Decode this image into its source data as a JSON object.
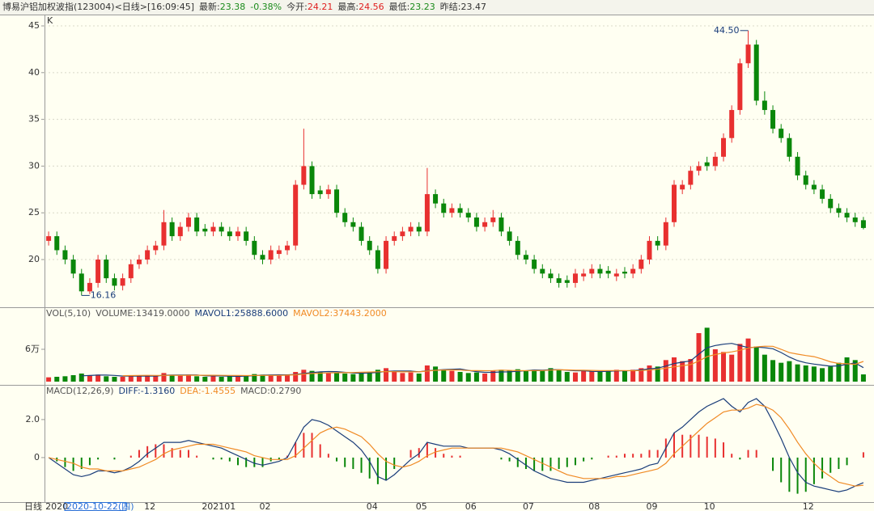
{
  "header": {
    "title": "博易沪铝加权波指(123004)<日线>[16:09:45]",
    "items": [
      {
        "label": "最新:",
        "value": 23.38,
        "color": "#1a8a1a"
      },
      {
        "label": "-0.38%",
        "color": "#1a8a1a"
      },
      {
        "label": "今开:",
        "value": 24.21,
        "color": "#e02020"
      },
      {
        "label": "最高:",
        "value": 24.56,
        "color": "#e02020"
      },
      {
        "label": "最低:",
        "value": 23.23,
        "color": "#1a8a1a"
      },
      {
        "label": "昨结:",
        "value": 23.47,
        "color": "#333333"
      }
    ]
  },
  "chart_data": {
    "type": "candlestick",
    "period_label": "日线",
    "cursor_date": "2020-10-22(四)",
    "categories": [
      "2020",
      null,
      null,
      null,
      null,
      null,
      null,
      null,
      null,
      null,
      null,
      null,
      "12",
      null,
      null,
      null,
      null,
      null,
      null,
      "202101",
      null,
      null,
      null,
      null,
      null,
      null,
      "02",
      null,
      null,
      null,
      null,
      null,
      null,
      null,
      null,
      null,
      null,
      null,
      null,
      "04",
      null,
      null,
      null,
      null,
      null,
      "05",
      null,
      null,
      null,
      null,
      null,
      "06",
      null,
      null,
      null,
      null,
      null,
      null,
      "07",
      null,
      null,
      null,
      null,
      null,
      null,
      null,
      "08",
      null,
      null,
      null,
      null,
      null,
      null,
      "09",
      null,
      null,
      null,
      null,
      null,
      null,
      "10",
      null,
      null,
      null,
      null,
      null,
      null,
      null,
      null,
      null,
      null,
      null,
      "12",
      null,
      null,
      null,
      null,
      null,
      null,
      null
    ],
    "up_color": "#e83030",
    "down_color": "#0a870a",
    "price": {
      "label": "K",
      "ylim": [
        15.07,
        46.04
      ],
      "yticks": [
        20,
        25,
        30,
        35,
        40,
        45
      ],
      "grid": true,
      "high_label": {
        "value": 44.5,
        "label": "44.50"
      },
      "low_label": {
        "value": 16.16,
        "label": "16.16"
      },
      "open": [
        22.0,
        22.5,
        21.0,
        20.0,
        18.5,
        16.6,
        17.5,
        20.0,
        18.0,
        17.2,
        18.0,
        19.5,
        20.0,
        21.0,
        21.5,
        24.0,
        22.5,
        23.5,
        24.5,
        23.3,
        23.0,
        23.5,
        23.0,
        22.5,
        23.0,
        22.0,
        20.5,
        20.0,
        20.6,
        21.0,
        21.5,
        28.0,
        30.0,
        27.4,
        27.0,
        27.5,
        25.0,
        24.0,
        23.5,
        22.0,
        21.0,
        19.0,
        22.0,
        22.5,
        23.0,
        23.5,
        23.0,
        27.0,
        26.0,
        25.0,
        25.5,
        25.0,
        24.5,
        23.5,
        24.0,
        24.5,
        23.0,
        22.0,
        20.5,
        20.0,
        19.0,
        18.5,
        18.0,
        17.8,
        17.5,
        18.2,
        18.5,
        19.0,
        18.8,
        18.2,
        18.7,
        18.5,
        19.0,
        20.0,
        22.0,
        21.5,
        24.0,
        27.5,
        28.0,
        29.5,
        30.4,
        30.0,
        31.0,
        33.0,
        36.0,
        41.0,
        43.0,
        37.0,
        36.0,
        34.0,
        33.0,
        31.0,
        29.0,
        28.0,
        27.5,
        26.5,
        25.5,
        25.0,
        24.5,
        24.21
      ],
      "high": [
        23.0,
        23.0,
        21.5,
        20.5,
        19.0,
        18.0,
        20.5,
        20.5,
        18.5,
        18.5,
        20.0,
        20.5,
        21.5,
        22.0,
        25.3,
        24.5,
        24.0,
        25.0,
        25.0,
        23.8,
        24.0,
        24.0,
        23.5,
        23.5,
        23.5,
        22.5,
        21.0,
        21.5,
        21.5,
        22.0,
        28.5,
        34.0,
        30.5,
        27.9,
        28.0,
        28.0,
        25.5,
        24.5,
        24.0,
        22.5,
        21.5,
        22.5,
        23.0,
        23.5,
        24.0,
        24.0,
        29.8,
        27.5,
        26.5,
        26.0,
        26.0,
        25.5,
        25.0,
        24.5,
        25.3,
        25.0,
        23.5,
        22.5,
        21.0,
        20.5,
        19.5,
        19.0,
        18.5,
        18.3,
        19.0,
        19.0,
        19.5,
        19.5,
        19.3,
        19.0,
        19.2,
        19.5,
        20.5,
        22.5,
        22.5,
        24.5,
        28.5,
        28.5,
        30.0,
        30.5,
        31.0,
        31.5,
        33.5,
        36.5,
        41.5,
        44.5,
        43.5,
        38.0,
        36.5,
        34.5,
        33.5,
        31.5,
        29.5,
        28.5,
        28.0,
        27.0,
        26.0,
        25.5,
        25.0,
        24.56
      ],
      "low": [
        21.5,
        20.5,
        19.5,
        18.0,
        16.16,
        16.3,
        17.0,
        17.5,
        16.7,
        16.7,
        17.5,
        19.0,
        19.5,
        20.5,
        21.0,
        22.0,
        22.0,
        23.0,
        22.5,
        22.5,
        22.5,
        22.5,
        22.0,
        22.0,
        21.5,
        20.0,
        19.5,
        19.5,
        20.1,
        20.5,
        21.0,
        27.5,
        26.5,
        26.5,
        26.5,
        24.5,
        23.5,
        23.0,
        21.5,
        20.5,
        18.5,
        18.5,
        21.5,
        22.0,
        22.5,
        22.5,
        22.5,
        25.5,
        24.5,
        24.5,
        24.5,
        24.0,
        23.0,
        23.0,
        23.5,
        22.5,
        21.5,
        20.0,
        19.5,
        18.5,
        18.0,
        17.5,
        17.0,
        17.0,
        17.0,
        17.7,
        18.0,
        18.0,
        18.0,
        17.7,
        18.0,
        18.0,
        18.5,
        19.5,
        21.0,
        21.0,
        23.5,
        27.0,
        27.5,
        29.0,
        29.5,
        29.5,
        30.5,
        32.5,
        35.5,
        40.5,
        36.5,
        35.5,
        33.5,
        32.5,
        30.5,
        28.5,
        27.5,
        27.0,
        26.0,
        25.0,
        24.5,
        24.0,
        23.5,
        23.23
      ],
      "close": [
        22.5,
        21.0,
        20.0,
        18.5,
        16.6,
        17.5,
        20.0,
        18.0,
        17.2,
        18.0,
        19.5,
        20.0,
        21.0,
        21.5,
        24.0,
        22.5,
        23.5,
        24.5,
        23.0,
        23.0,
        23.5,
        23.0,
        22.5,
        23.0,
        22.0,
        20.5,
        20.0,
        21.0,
        21.0,
        21.5,
        28.0,
        30.0,
        27.0,
        27.0,
        27.5,
        25.0,
        24.0,
        23.5,
        22.0,
        21.0,
        19.0,
        22.0,
        22.5,
        23.0,
        23.5,
        23.0,
        27.0,
        26.0,
        25.0,
        25.5,
        25.0,
        24.5,
        23.5,
        24.0,
        24.5,
        23.0,
        22.0,
        20.5,
        20.0,
        19.0,
        18.5,
        18.0,
        17.5,
        17.5,
        18.5,
        18.5,
        19.0,
        18.5,
        18.5,
        18.5,
        18.5,
        19.0,
        20.0,
        22.0,
        21.5,
        24.0,
        28.0,
        28.0,
        29.5,
        30.0,
        30.0,
        31.0,
        33.0,
        36.0,
        41.0,
        43.0,
        37.0,
        36.0,
        34.0,
        33.0,
        31.0,
        29.0,
        28.0,
        27.5,
        26.5,
        25.5,
        25.0,
        24.5,
        24.0,
        23.38
      ]
    },
    "volume": {
      "ylim": [
        0,
        135000
      ],
      "yticks": [
        {
          "value": 60000,
          "label": "6万"
        }
      ],
      "legend": [
        {
          "text": "VOL(5,10)",
          "color": "#555555"
        },
        {
          "text": "VOLUME:13419.0000",
          "color": "#555555"
        },
        {
          "text": "MAVOL1:25888.6000",
          "color": "#1a3d7a"
        },
        {
          "text": "MAVOL2:37443.2000",
          "color": "#f08a24"
        }
      ],
      "values": [
        8000,
        9000,
        10000,
        12000,
        15000,
        11000,
        13000,
        10000,
        9000,
        9000,
        10000,
        11000,
        12000,
        10000,
        16000,
        12000,
        11000,
        13000,
        10000,
        9000,
        10000,
        9000,
        10000,
        11000,
        12000,
        14000,
        13000,
        12000,
        11000,
        13000,
        18000,
        22000,
        20000,
        18000,
        16000,
        17000,
        15000,
        14000,
        16000,
        18000,
        22000,
        25000,
        18000,
        16000,
        17000,
        15000,
        30000,
        28000,
        22000,
        20000,
        18000,
        16000,
        17000,
        15000,
        20000,
        22000,
        21000,
        23000,
        20000,
        22000,
        20000,
        25000,
        21000,
        18000,
        17000,
        20000,
        19000,
        18000,
        21000,
        22000,
        20000,
        22000,
        25000,
        30000,
        28000,
        40000,
        45000,
        38000,
        42000,
        90000,
        100000,
        60000,
        55000,
        50000,
        70000,
        80000,
        65000,
        50000,
        40000,
        35000,
        38000,
        32000,
        30000,
        28000,
        25000,
        28000,
        35000,
        45000,
        40000,
        13419
      ],
      "series": [
        {
          "name": "MAVOL1",
          "color": "#1a3d7a",
          "values": [
            null,
            null,
            null,
            null,
            10800,
            11400,
            12200,
            12200,
            11600,
            10400,
            10200,
            10400,
            10200,
            10400,
            11800,
            12200,
            12200,
            12400,
            12400,
            11000,
            10600,
            10600,
            10000,
            9800,
            10400,
            11200,
            12000,
            12400,
            12600,
            12600,
            13400,
            15200,
            16800,
            18200,
            18800,
            18600,
            17200,
            16000,
            15600,
            16000,
            17000,
            19000,
            19800,
            19800,
            19600,
            18200,
            20200,
            21200,
            22400,
            23000,
            23600,
            20800,
            18600,
            17200,
            17200,
            18000,
            18200,
            19200,
            20200,
            21600,
            21200,
            22200,
            22200,
            21200,
            20200,
            20200,
            19000,
            18800,
            19000,
            20000,
            20000,
            20600,
            21800,
            23800,
            25000,
            29000,
            33600,
            36200,
            38600,
            51000,
            63000,
            67000,
            69400,
            71000,
            67000,
            63000,
            64000,
            63000,
            61000,
            54000,
            45600,
            39000,
            35000,
            32600,
            30600,
            28600,
            29200,
            32200,
            34600,
            25888.6
          ]
        },
        {
          "name": "MAVOL2",
          "color": "#f08a24",
          "values": [
            null,
            null,
            null,
            null,
            null,
            null,
            null,
            null,
            null,
            11100,
            11300,
            11500,
            11700,
            11500,
            11600,
            11700,
            11500,
            11800,
            11900,
            11900,
            11900,
            11700,
            11500,
            11600,
            11200,
            11400,
            11600,
            11500,
            11600,
            12000,
            12800,
            14100,
            15100,
            15800,
            16200,
            16500,
            16700,
            16900,
            17400,
            17900,
            18300,
            18600,
            18400,
            18200,
            18300,
            18100,
            19600,
            21000,
            21600,
            21800,
            21400,
            20500,
            20400,
            20300,
            20600,
            21300,
            20900,
            20400,
            20200,
            20400,
            20600,
            21500,
            21900,
            21800,
            21300,
            21100,
            20900,
            20400,
            20500,
            20500,
            20500,
            20200,
            20600,
            21800,
            22900,
            24900,
            27500,
            29500,
            31600,
            38400,
            46400,
            50200,
            53200,
            55200,
            58200,
            62500,
            64500,
            65700,
            65500,
            60000,
            53800,
            51000,
            48500,
            46300,
            41800,
            36700,
            33700,
            33200,
            32100,
            37443.2
          ]
        }
      ]
    },
    "macd": {
      "ylim": [
        -2.3,
        3.74
      ],
      "yticks": [
        {
          "value": 2,
          "label": "2.0"
        },
        0
      ],
      "legend": [
        {
          "text": "MACD(12,26,9)",
          "color": "#555555"
        },
        {
          "text": "DIFF:-1.3160",
          "color": "#1a3d7a"
        },
        {
          "text": "DEA:-1.4555",
          "color": "#f08a24"
        },
        {
          "text": "MACD:0.2790",
          "color": "#555555"
        }
      ],
      "macd": [
        0,
        -0.2,
        -0.5,
        -0.7,
        -0.6,
        -0.4,
        -0.1,
        0,
        -0.1,
        0,
        0.1,
        0.4,
        0.6,
        0.7,
        0.7,
        0.5,
        0.4,
        0.4,
        0.1,
        0,
        -0.1,
        -0.1,
        -0.2,
        -0.4,
        -0.5,
        -0.5,
        -0.5,
        -0.2,
        -0.1,
        0.1,
        0.8,
        1.3,
        1.3,
        0.7,
        0.2,
        -0.2,
        -0.5,
        -0.6,
        -0.8,
        -1.1,
        -1.4,
        -1.2,
        -0.6,
        0,
        0.4,
        0.5,
        0.8,
        0.5,
        0.2,
        0.1,
        0.1,
        0,
        0,
        0,
        0,
        -0.1,
        -0.2,
        -0.5,
        -0.6,
        -0.7,
        -0.7,
        -0.7,
        -0.6,
        -0.5,
        -0.4,
        -0.2,
        -0.1,
        0,
        0.1,
        0.1,
        0.2,
        0.2,
        0.2,
        0.4,
        0.4,
        1.0,
        1.3,
        1.2,
        1.2,
        1.2,
        1.1,
        1.0,
        0.8,
        0.2,
        -0.1,
        0.4,
        0.4,
        0,
        -0.7,
        -1.3,
        -1.8,
        -1.9,
        -1.8,
        -1.4,
        -1.1,
        -0.8,
        -0.6,
        -0.4,
        0,
        0.279
      ],
      "series": [
        {
          "name": "DIFF",
          "color": "#1a3d7a",
          "values": [
            0.0,
            -0.3,
            -0.6,
            -0.9,
            -1.0,
            -0.9,
            -0.7,
            -0.7,
            -0.8,
            -0.7,
            -0.5,
            -0.2,
            0.2,
            0.5,
            0.8,
            0.8,
            0.8,
            0.9,
            0.8,
            0.7,
            0.6,
            0.5,
            0.3,
            0.1,
            -0.1,
            -0.3,
            -0.4,
            -0.3,
            -0.2,
            0.0,
            0.8,
            1.6,
            2.0,
            1.9,
            1.7,
            1.4,
            1.1,
            0.8,
            0.4,
            -0.2,
            -1.0,
            -1.2,
            -0.9,
            -0.5,
            -0.1,
            0.2,
            0.8,
            0.7,
            0.6,
            0.6,
            0.6,
            0.5,
            0.5,
            0.5,
            0.5,
            0.4,
            0.2,
            -0.1,
            -0.4,
            -0.7,
            -0.9,
            -1.1,
            -1.2,
            -1.3,
            -1.3,
            -1.3,
            -1.2,
            -1.1,
            -1.0,
            -0.9,
            -0.8,
            -0.7,
            -0.6,
            -0.4,
            -0.3,
            0.5,
            1.3,
            1.6,
            2.0,
            2.4,
            2.7,
            2.9,
            3.1,
            2.7,
            2.4,
            2.9,
            3.1,
            2.7,
            1.9,
            1.0,
            0.0,
            -0.8,
            -1.3,
            -1.5,
            -1.6,
            -1.7,
            -1.8,
            -1.7,
            -1.5,
            -1.316
          ]
        },
        {
          "name": "DEA",
          "color": "#f08a24",
          "values": [
            0.0,
            -0.1,
            -0.2,
            -0.3,
            -0.5,
            -0.6,
            -0.6,
            -0.7,
            -0.7,
            -0.7,
            -0.6,
            -0.5,
            -0.3,
            -0.1,
            0.2,
            0.4,
            0.5,
            0.6,
            0.7,
            0.7,
            0.7,
            0.6,
            0.5,
            0.4,
            0.3,
            0.1,
            0.0,
            -0.1,
            -0.1,
            -0.1,
            0.1,
            0.5,
            0.9,
            1.3,
            1.5,
            1.6,
            1.5,
            1.3,
            1.1,
            0.7,
            0.2,
            -0.2,
            -0.4,
            -0.5,
            -0.4,
            -0.2,
            0.1,
            0.3,
            0.4,
            0.5,
            0.5,
            0.5,
            0.5,
            0.5,
            0.5,
            0.5,
            0.4,
            0.3,
            0.1,
            -0.1,
            -0.3,
            -0.5,
            -0.7,
            -0.9,
            -1.0,
            -1.1,
            -1.1,
            -1.1,
            -1.1,
            -1.0,
            -1.0,
            -0.9,
            -0.8,
            -0.7,
            -0.6,
            -0.3,
            0.2,
            0.6,
            1.0,
            1.4,
            1.8,
            2.1,
            2.4,
            2.5,
            2.5,
            2.6,
            2.8,
            2.7,
            2.5,
            2.1,
            1.5,
            0.8,
            0.2,
            -0.3,
            -0.7,
            -1.0,
            -1.3,
            -1.4,
            -1.5,
            -1.4555
          ]
        }
      ]
    }
  }
}
